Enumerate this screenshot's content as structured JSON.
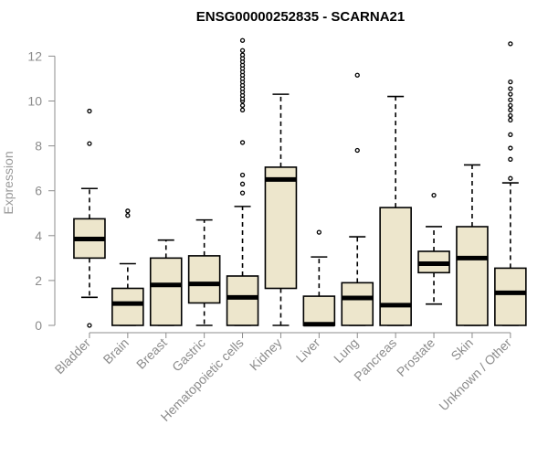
{
  "chart_data": {
    "type": "boxplot",
    "title": "ENSG00000252835 - SCARNA21",
    "xlabel": "",
    "ylabel": "Expression",
    "ylim": [
      0,
      12.5
    ],
    "yticks": [
      0,
      2,
      4,
      6,
      8,
      10,
      12
    ],
    "colors": {
      "box_fill": "#ede6cc",
      "stroke": "#000000",
      "axis": "#8c8c8c"
    },
    "categories": [
      "Bladder",
      "Brain",
      "Breast",
      "Gastric",
      "Hematopoietic cells",
      "Kidney",
      "Liver",
      "Lung",
      "Pancreas",
      "Prostate",
      "Skin",
      "Unknown / Other"
    ],
    "boxes": [
      {
        "name": "Bladder",
        "whislo": 1.25,
        "q1": 3.0,
        "med": 3.85,
        "q3": 4.75,
        "whishi": 6.1,
        "fliers": [
          0.0,
          8.1,
          9.55
        ]
      },
      {
        "name": "Brain",
        "whislo": 0.0,
        "q1": 0.0,
        "med": 0.97,
        "q3": 1.65,
        "whishi": 2.75,
        "fliers": [
          4.9,
          5.1
        ]
      },
      {
        "name": "Breast",
        "whislo": 0.0,
        "q1": 0.0,
        "med": 1.8,
        "q3": 3.0,
        "whishi": 3.8,
        "fliers": []
      },
      {
        "name": "Gastric",
        "whislo": 0.0,
        "q1": 1.0,
        "med": 1.85,
        "q3": 3.1,
        "whishi": 4.7,
        "fliers": []
      },
      {
        "name": "Hematopoietic cells",
        "whislo": 0.0,
        "q1": 0.0,
        "med": 1.25,
        "q3": 2.2,
        "whishi": 5.3,
        "fliers": [
          5.9,
          6.3,
          6.7,
          8.15,
          9.6,
          9.8,
          10.0,
          10.1,
          10.25,
          10.4,
          10.55,
          10.7,
          10.85,
          11.0,
          11.15,
          11.3,
          11.45,
          11.6,
          11.75,
          11.9,
          12.05,
          12.25,
          12.7
        ]
      },
      {
        "name": "Kidney",
        "whislo": 0.0,
        "q1": 1.65,
        "med": 6.5,
        "q3": 7.05,
        "whishi": 10.3,
        "fliers": []
      },
      {
        "name": "Liver",
        "whislo": 0.0,
        "q1": 0.0,
        "med": 0.05,
        "q3": 1.3,
        "whishi": 3.05,
        "fliers": [
          4.15
        ]
      },
      {
        "name": "Lung",
        "whislo": 0.0,
        "q1": 0.0,
        "med": 1.22,
        "q3": 1.9,
        "whishi": 3.95,
        "fliers": [
          7.8,
          11.15
        ]
      },
      {
        "name": "Pancreas",
        "whislo": 0.0,
        "q1": 0.0,
        "med": 0.9,
        "q3": 5.25,
        "whishi": 10.2,
        "fliers": []
      },
      {
        "name": "Prostate",
        "whislo": 0.95,
        "q1": 2.35,
        "med": 2.75,
        "q3": 3.3,
        "whishi": 4.4,
        "fliers": [
          5.8
        ]
      },
      {
        "name": "Skin",
        "whislo": 0.0,
        "q1": 0.0,
        "med": 3.0,
        "q3": 4.4,
        "whishi": 7.15,
        "fliers": []
      },
      {
        "name": "Unknown / Other",
        "whislo": 0.0,
        "q1": 0.0,
        "med": 1.45,
        "q3": 2.55,
        "whishi": 6.35,
        "fliers": [
          6.55,
          7.4,
          7.9,
          8.5,
          9.15,
          9.35,
          9.6,
          9.8,
          10.05,
          10.3,
          10.55,
          10.85,
          12.55
        ]
      }
    ]
  }
}
